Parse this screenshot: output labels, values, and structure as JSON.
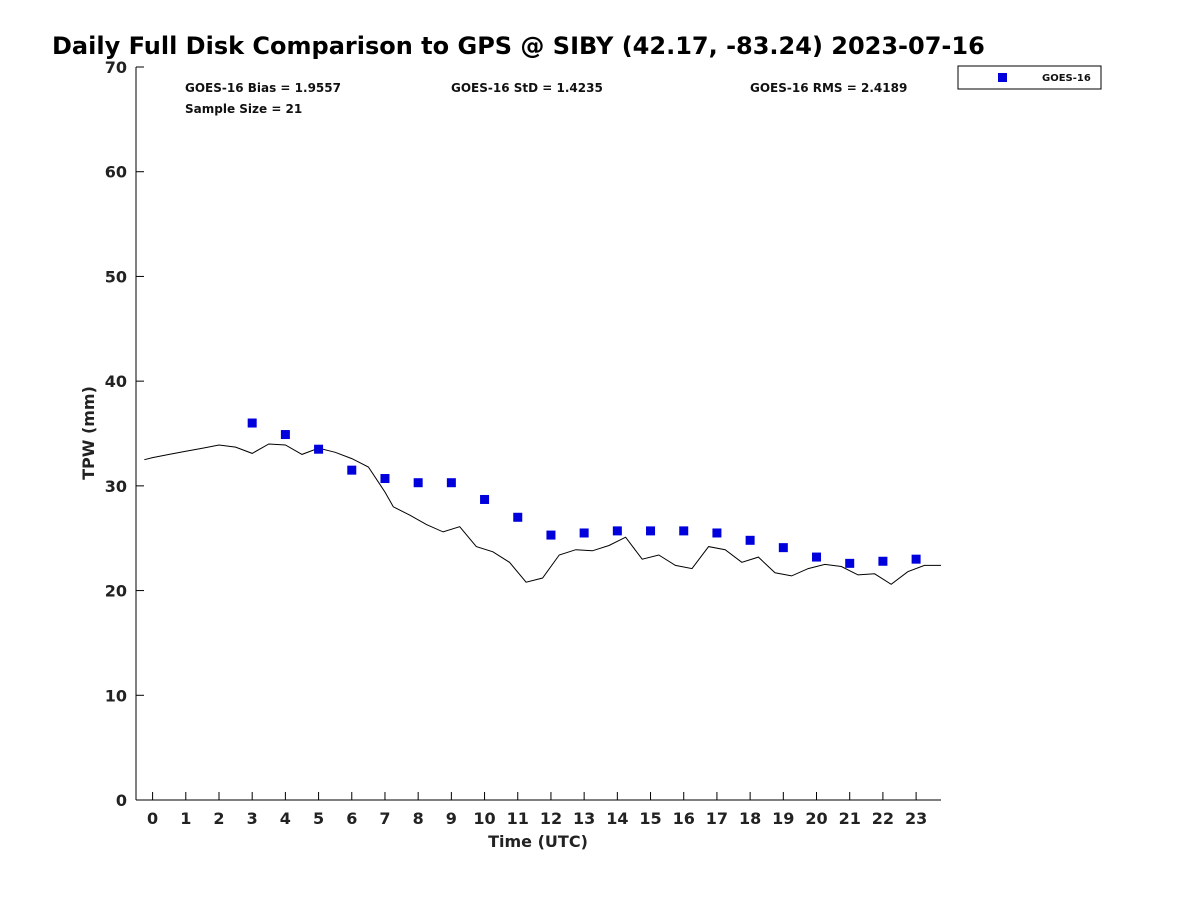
{
  "chart_data": {
    "type": "scatter",
    "title": "Daily Full Disk Comparison to GPS @ SIBY (42.17, -83.24) 2023-07-16",
    "xlabel": "Time (UTC)",
    "ylabel": "TPW (mm)",
    "xlim": [
      -0.5,
      23.75
    ],
    "ylim": [
      0,
      70
    ],
    "x_ticks": [
      0,
      1,
      2,
      3,
      4,
      5,
      6,
      7,
      8,
      9,
      10,
      11,
      12,
      13,
      14,
      15,
      16,
      17,
      18,
      19,
      20,
      21,
      22,
      23
    ],
    "y_ticks": [
      0,
      10,
      20,
      30,
      40,
      50,
      60,
      70
    ],
    "grid": false,
    "legend_position": "outside-top-right",
    "stats": {
      "bias": "GOES-16 Bias = 1.9557",
      "std": "GOES-16 StD = 1.4235",
      "rms": "GOES-16 RMS = 2.4189",
      "sample": "Sample Size = 21"
    },
    "series": [
      {
        "name": "GOES-16",
        "type": "scatter",
        "color": "#0000dd",
        "marker": "square",
        "x": [
          3,
          4,
          5,
          6,
          7,
          8,
          9,
          10,
          11,
          12,
          13,
          14,
          15,
          16,
          17,
          18,
          19,
          20,
          21,
          22,
          23
        ],
        "y": [
          36.0,
          34.9,
          33.5,
          31.5,
          30.7,
          30.3,
          30.3,
          28.7,
          27.0,
          25.3,
          25.5,
          25.7,
          25.7,
          25.7,
          25.5,
          24.8,
          24.1,
          23.2,
          22.6,
          22.8,
          23.0
        ]
      },
      {
        "type": "line",
        "color": "#000000",
        "x": [
          -0.25,
          0.0,
          0.5,
          1.0,
          1.5,
          2.0,
          2.5,
          3.0,
          3.5,
          4.0,
          4.5,
          5.0,
          5.5,
          6.0,
          6.5,
          7.0,
          7.25,
          7.75,
          8.25,
          8.75,
          9.25,
          9.75,
          10.25,
          10.75,
          11.25,
          11.75,
          12.25,
          12.75,
          13.25,
          13.75,
          14.25,
          14.75,
          15.25,
          15.75,
          16.25,
          16.75,
          17.25,
          17.75,
          18.25,
          18.75,
          19.25,
          19.75,
          20.25,
          20.75,
          21.25,
          21.75,
          22.25,
          22.75,
          23.25,
          23.75
        ],
        "y": [
          32.5,
          32.7,
          33.0,
          33.3,
          33.6,
          33.9,
          33.7,
          33.1,
          34.0,
          33.9,
          33.0,
          33.6,
          33.2,
          32.6,
          31.8,
          29.4,
          28.0,
          27.2,
          26.3,
          25.6,
          26.1,
          24.2,
          23.7,
          22.7,
          20.8,
          21.2,
          23.4,
          23.9,
          23.8,
          24.3,
          25.1,
          23.0,
          23.4,
          22.4,
          22.1,
          24.2,
          23.9,
          22.7,
          23.2,
          21.7,
          21.4,
          22.1,
          22.5,
          22.3,
          21.5,
          21.6,
          20.6,
          21.8,
          22.4,
          22.4
        ]
      }
    ]
  }
}
